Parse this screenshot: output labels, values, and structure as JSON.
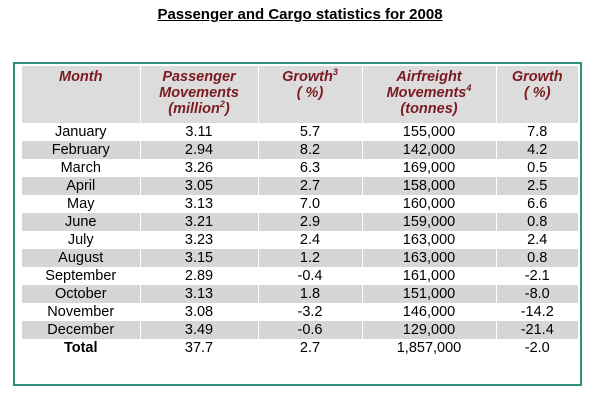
{
  "title": "Passenger and Cargo statistics for 2008",
  "headers": {
    "month": "Month",
    "passenger_line1": "Passenger",
    "passenger_line2": "Movements",
    "passenger_line3_pre": "(million",
    "passenger_sup": "2",
    "passenger_line3_post": ")",
    "growth1_line1": "Growth",
    "growth1_sup": "3",
    "growth1_line2": "( %)",
    "airfreight_line1": "Airfreight",
    "airfreight_line2": "Movements",
    "airfreight_sup": "4",
    "airfreight_line3": "(tonnes)",
    "growth2_line1": "Growth",
    "growth2_line2": "( %)"
  },
  "rows": [
    {
      "month": "January",
      "passengers": "3.11",
      "growth_pax": "5.7",
      "airfreight": "155,000",
      "growth_cargo": "7.8"
    },
    {
      "month": "February",
      "passengers": "2.94",
      "growth_pax": "8.2",
      "airfreight": "142,000",
      "growth_cargo": "4.2"
    },
    {
      "month": "March",
      "passengers": "3.26",
      "growth_pax": "6.3",
      "airfreight": "169,000",
      "growth_cargo": "0.5"
    },
    {
      "month": "April",
      "passengers": "3.05",
      "growth_pax": "2.7",
      "airfreight": "158,000",
      "growth_cargo": "2.5"
    },
    {
      "month": "May",
      "passengers": "3.13",
      "growth_pax": "7.0",
      "airfreight": "160,000",
      "growth_cargo": "6.6"
    },
    {
      "month": "June",
      "passengers": "3.21",
      "growth_pax": "2.9",
      "airfreight": "159,000",
      "growth_cargo": "0.8"
    },
    {
      "month": "July",
      "passengers": "3.23",
      "growth_pax": "2.4",
      "airfreight": "163,000",
      "growth_cargo": "2.4"
    },
    {
      "month": "August",
      "passengers": "3.15",
      "growth_pax": "1.2",
      "airfreight": "163,000",
      "growth_cargo": "0.8"
    },
    {
      "month": "September",
      "passengers": "2.89",
      "growth_pax": "-0.4",
      "airfreight": "161,000",
      "growth_cargo": "-2.1"
    },
    {
      "month": "October",
      "passengers": "3.13",
      "growth_pax": "1.8",
      "airfreight": "151,000",
      "growth_cargo": "-8.0"
    },
    {
      "month": "November",
      "passengers": "3.08",
      "growth_pax": "-3.2",
      "airfreight": "146,000",
      "growth_cargo": "-14.2"
    },
    {
      "month": "December",
      "passengers": "3.49",
      "growth_pax": "-0.6",
      "airfreight": "129,000",
      "growth_cargo": "-21.4"
    }
  ],
  "total": {
    "month": "Total",
    "passengers": "37.7",
    "growth_pax": "2.7",
    "airfreight": "1,857,000",
    "growth_cargo": "-2.0"
  },
  "colors": {
    "header_text": "#7b1a1f",
    "header_bg": "#dcdcdc",
    "stripe_bg": "#d6d6d6",
    "frame_border": "#2e8f7a"
  }
}
